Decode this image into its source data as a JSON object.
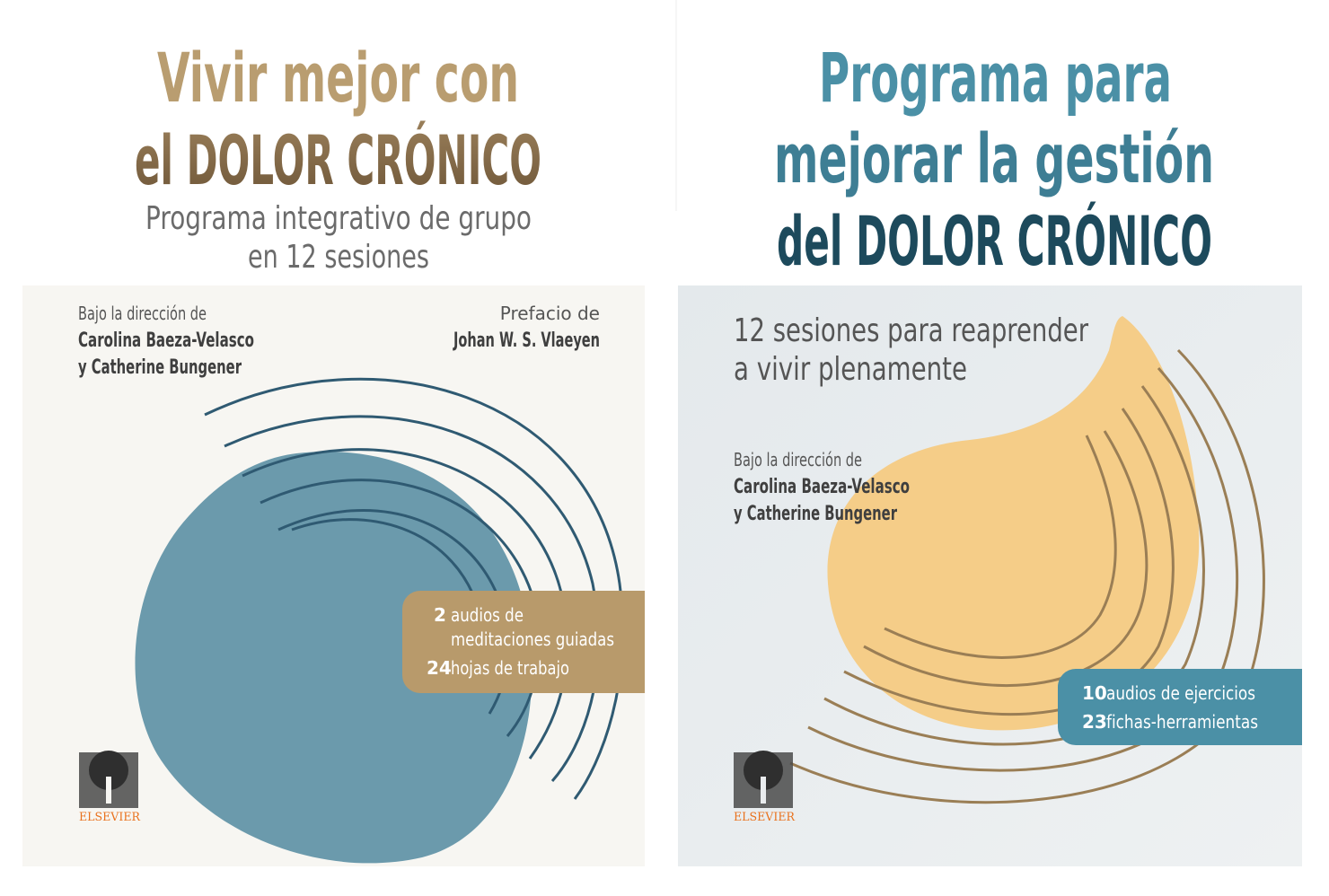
{
  "covers": [
    {
      "title": [
        "Vivir mejor con",
        "el DOLOR CRÓNICO"
      ],
      "subtitle": [
        "Programa integrativo de grupo",
        "en 12 sesiones"
      ],
      "direction_label": "Bajo la dirección de",
      "authors": [
        "Carolina Baeza-Velasco",
        "y Catherine Bungener"
      ],
      "preface_label": "Prefacio de",
      "preface_author": "Johan W. S. Vlaeyen",
      "extras": [
        {
          "count": 2,
          "label": [
            "audios de",
            "meditaciones guiadas"
          ]
        },
        {
          "count": 24,
          "label": [
            "hojas de trabajo"
          ]
        }
      ],
      "publisher": "ELSEVIER"
    },
    {
      "title": [
        "Programa para",
        "mejorar la gestión",
        "del DOLOR CRÓNICO"
      ],
      "subtitle": [
        "12 sesiones para reaprender",
        "a vivir plenamente"
      ],
      "direction_label": "Bajo la dirección de",
      "authors": [
        "Carolina Baeza-Velasco",
        "y Catherine Bungener"
      ],
      "extras": [
        {
          "count": 10,
          "label": [
            "audios de ejercicios"
          ]
        },
        {
          "count": 23,
          "label": [
            "fichas-herramientas"
          ]
        }
      ],
      "publisher": "ELSEVIER"
    }
  ]
}
